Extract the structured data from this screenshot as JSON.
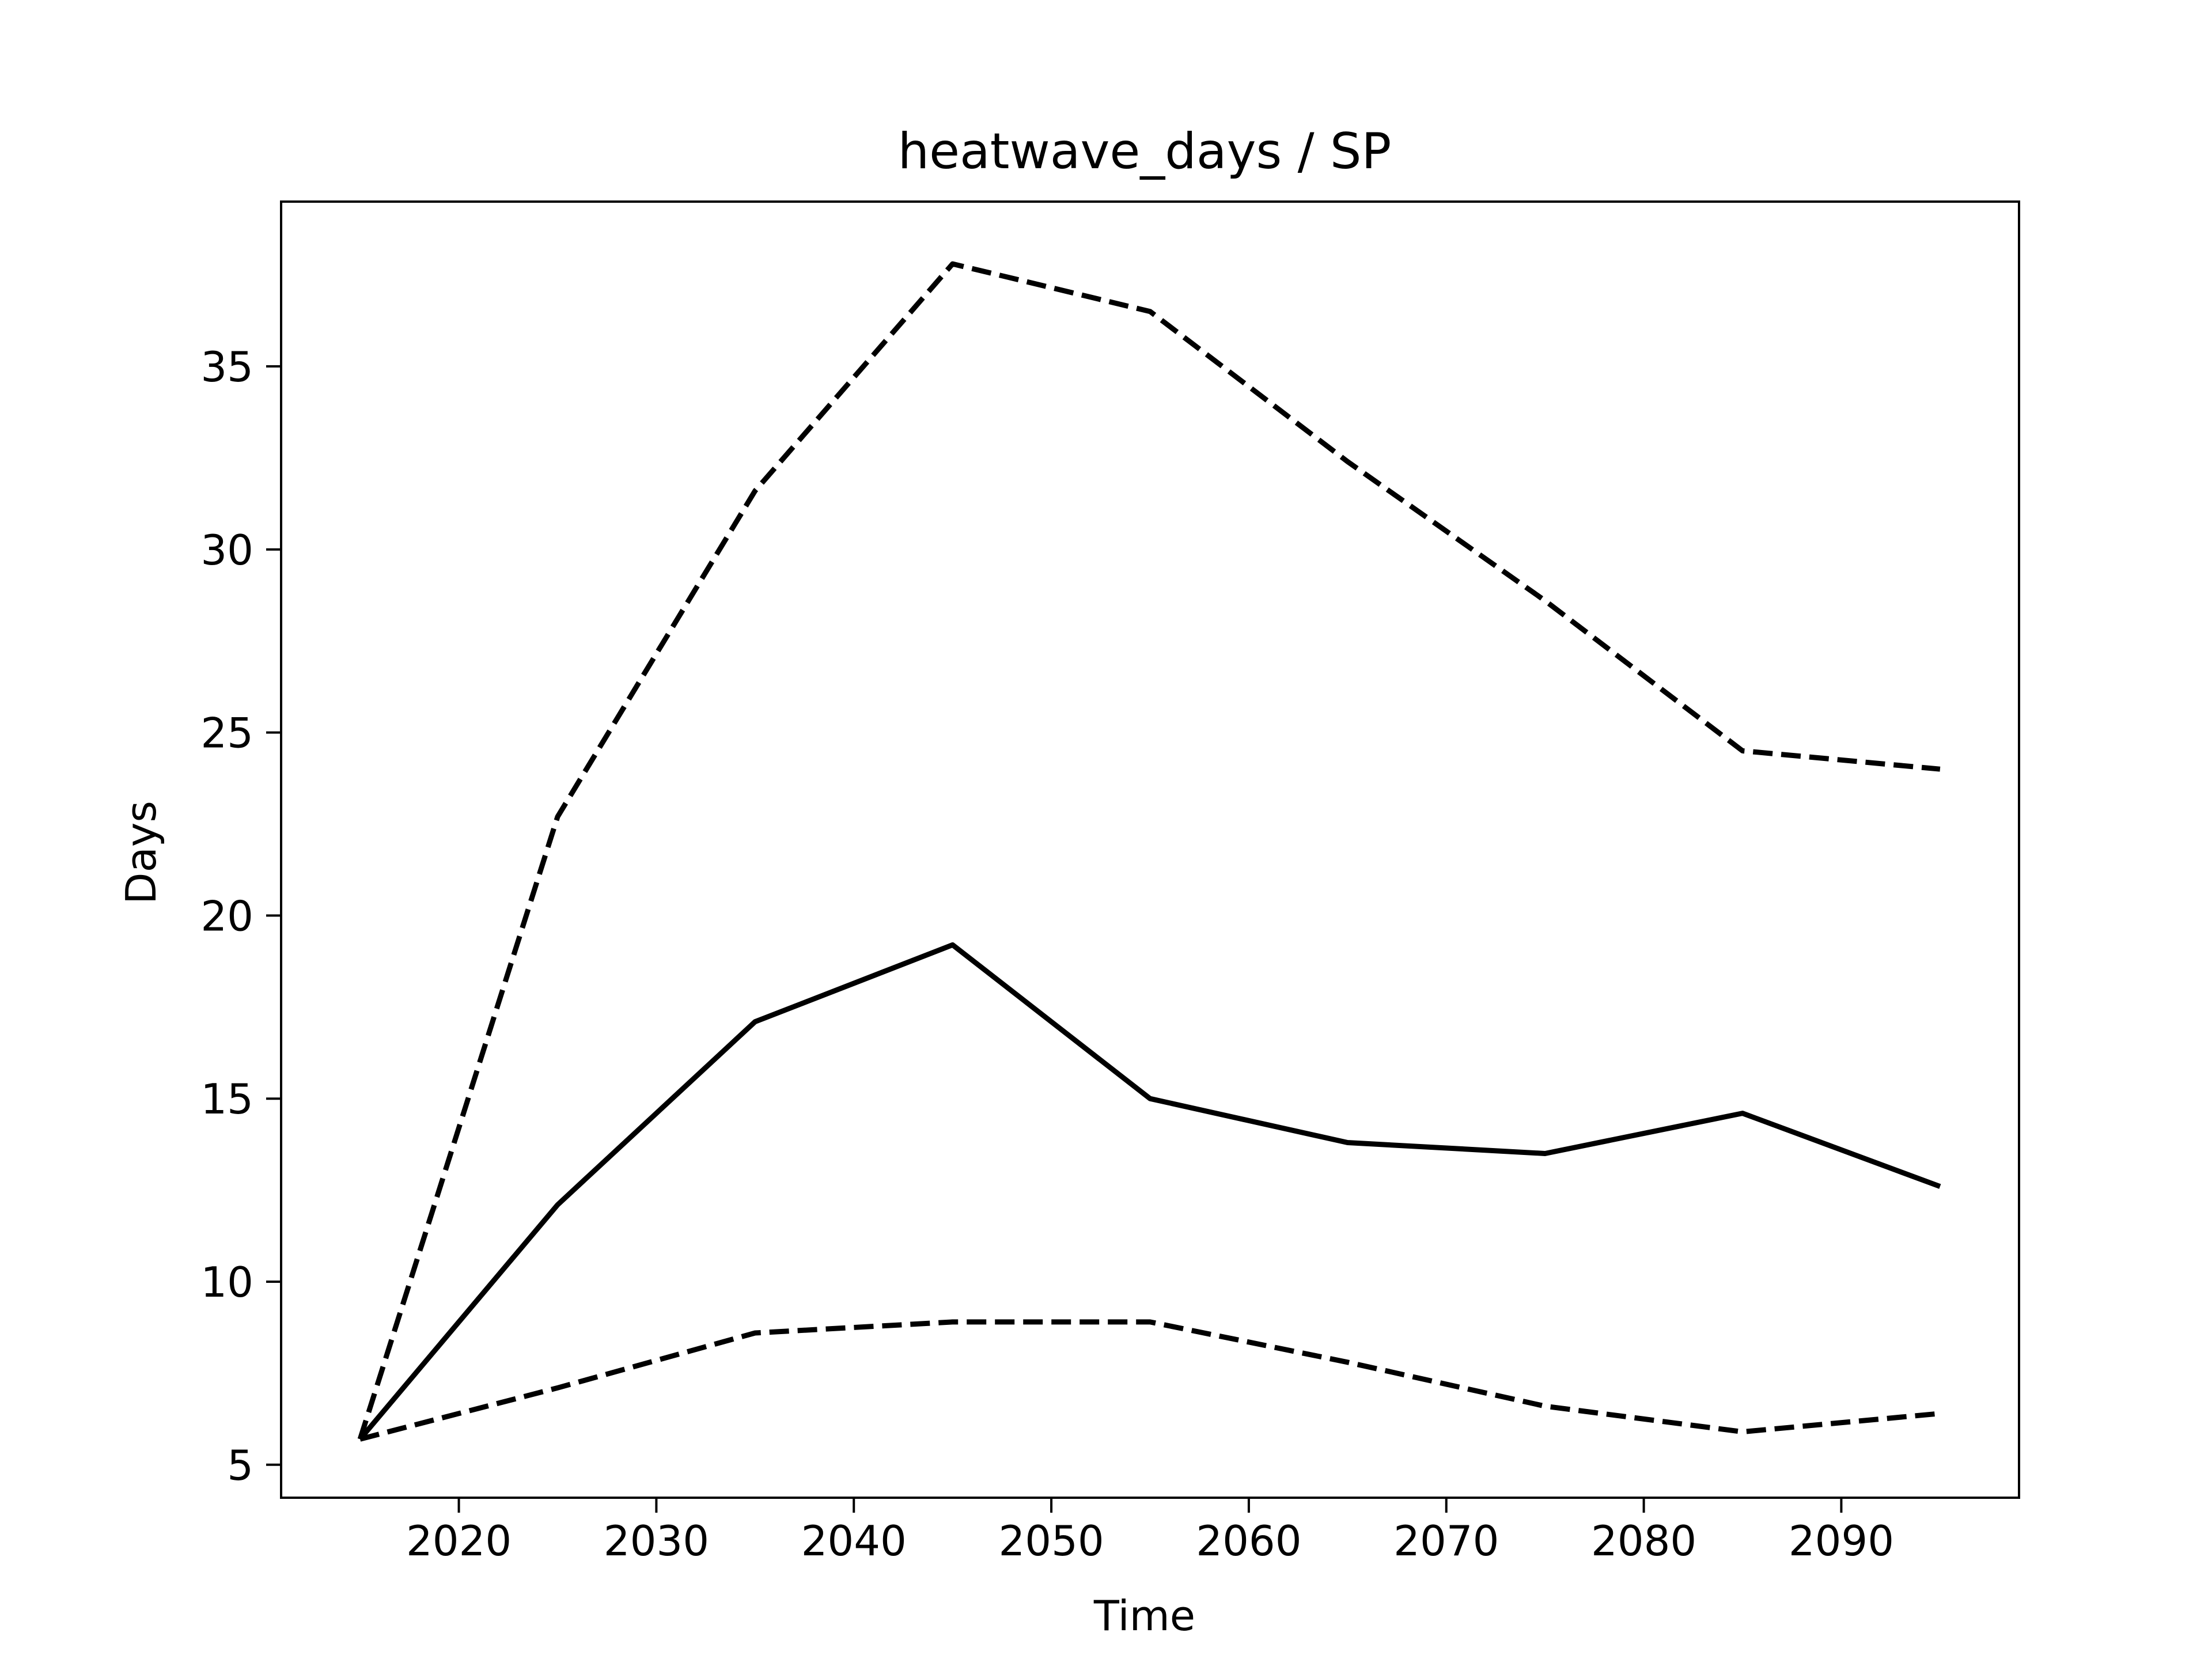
{
  "chart_data": {
    "type": "line",
    "title": "heatwave_days / SP",
    "xlabel": "Time",
    "ylabel": "Days",
    "xlim": [
      2011,
      2099
    ],
    "ylim": [
      4.1,
      39.5
    ],
    "x_ticks": [
      2020,
      2030,
      2040,
      2050,
      2060,
      2070,
      2080,
      2090
    ],
    "y_ticks": [
      5,
      10,
      15,
      20,
      25,
      30,
      35
    ],
    "grid": false,
    "legend": "none",
    "x": [
      2015,
      2025,
      2035,
      2045,
      2055,
      2065,
      2075,
      2085,
      2095
    ],
    "series": [
      {
        "style": "solid",
        "color": "#000000",
        "values": [
          5.7,
          12.1,
          17.1,
          19.2,
          15.0,
          13.8,
          13.5,
          14.6,
          12.6
        ]
      },
      {
        "style": "dashed",
        "color": "#000000",
        "values": [
          5.7,
          22.7,
          31.6,
          37.8,
          36.5,
          32.4,
          28.6,
          24.5,
          24.0
        ]
      },
      {
        "style": "dashed",
        "color": "#000000",
        "values": [
          5.7,
          7.1,
          8.6,
          8.9,
          8.9,
          7.8,
          6.6,
          5.9,
          6.4
        ]
      }
    ]
  }
}
